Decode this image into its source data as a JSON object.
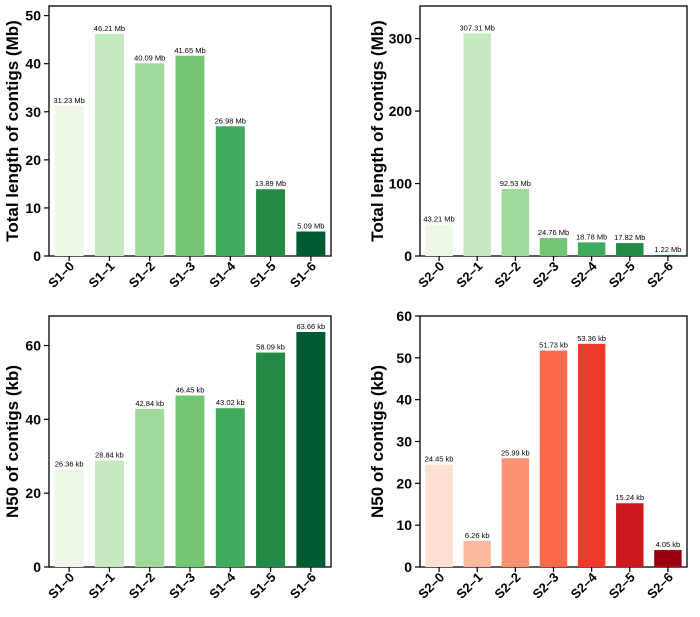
{
  "chart_data": [
    {
      "type": "bar",
      "panel": "top-left",
      "ylabel": "Total length of contigs (Mb)",
      "categories": [
        "S1–0",
        "S1–1",
        "S1–2",
        "S1–3",
        "S1–4",
        "S1–5",
        "S1–6"
      ],
      "values": [
        31.23,
        46.21,
        40.09,
        41.65,
        26.98,
        13.89,
        5.09
      ],
      "labels": [
        "31.23 Mb",
        "46.21 Mb",
        "40.09 Mb",
        "41.65 Mb",
        "26.98 Mb",
        "13.89 Mb",
        "5.09 Mb"
      ],
      "colors": [
        "#edf8e9",
        "#c7e9c0",
        "#a1d99b",
        "#74c476",
        "#41ab5d",
        "#238b45",
        "#005a32"
      ],
      "ylim": [
        0,
        52
      ],
      "yticks": [
        0,
        10,
        20,
        30,
        40,
        50
      ]
    },
    {
      "type": "bar",
      "panel": "top-right",
      "ylabel": "Total length of contigs (Mb)",
      "categories": [
        "S2–0",
        "S2–1",
        "S2–2",
        "S2–3",
        "S2–4",
        "S2–5",
        "S2–6"
      ],
      "values": [
        43.21,
        307.31,
        92.53,
        24.76,
        18.78,
        17.82,
        1.22
      ],
      "labels": [
        "43.21 Mb",
        "307.31 Mb",
        "92.53 Mb",
        "24.76 Mb",
        "18.78 Mb",
        "17.82 Mb",
        "1.22 Mb"
      ],
      "colors": [
        "#edf8e9",
        "#c7e9c0",
        "#a1d99b",
        "#74c476",
        "#41ab5d",
        "#238b45",
        "#005a32"
      ],
      "ylim": [
        0,
        345
      ],
      "yticks": [
        0,
        100,
        200,
        300
      ]
    },
    {
      "type": "bar",
      "panel": "bottom-left",
      "ylabel": "N50 of contigs (kb)",
      "categories": [
        "S1–0",
        "S1–1",
        "S1–2",
        "S1–3",
        "S1–4",
        "S1–5",
        "S1–6"
      ],
      "values": [
        26.36,
        28.84,
        42.84,
        46.45,
        43.02,
        58.09,
        63.66
      ],
      "labels": [
        "26.36 kb",
        "28.84 kb",
        "42.84 kb",
        "46.45 kb",
        "43.02 kb",
        "58.09 kb",
        "63.66 kb"
      ],
      "colors": [
        "#edf8e9",
        "#c7e9c0",
        "#a1d99b",
        "#74c476",
        "#41ab5d",
        "#238b45",
        "#005a32"
      ],
      "ylim": [
        0,
        68
      ],
      "yticks": [
        0,
        20,
        40,
        60
      ]
    },
    {
      "type": "bar",
      "panel": "bottom-right",
      "ylabel": "N50 of contigs (kb)",
      "categories": [
        "S2–0",
        "S2–1",
        "S2–2",
        "S2–3",
        "S2–4",
        "S2–5",
        "S2–6"
      ],
      "values": [
        24.45,
        6.26,
        25.99,
        51.73,
        53.36,
        15.24,
        4.05
      ],
      "labels": [
        "24.45 kb",
        "6.26 kb",
        "25.99 kb",
        "51.73 kb",
        "53.36 kb",
        "15.24 kb",
        "4.05 kb"
      ],
      "colors": [
        "#fee0d2",
        "#fcbba1",
        "#fc9272",
        "#fb6a4a",
        "#ef3b2c",
        "#cb181d",
        "#99000d"
      ],
      "ylim": [
        0,
        60
      ],
      "yticks": [
        0,
        10,
        20,
        30,
        40,
        50,
        60
      ]
    }
  ]
}
